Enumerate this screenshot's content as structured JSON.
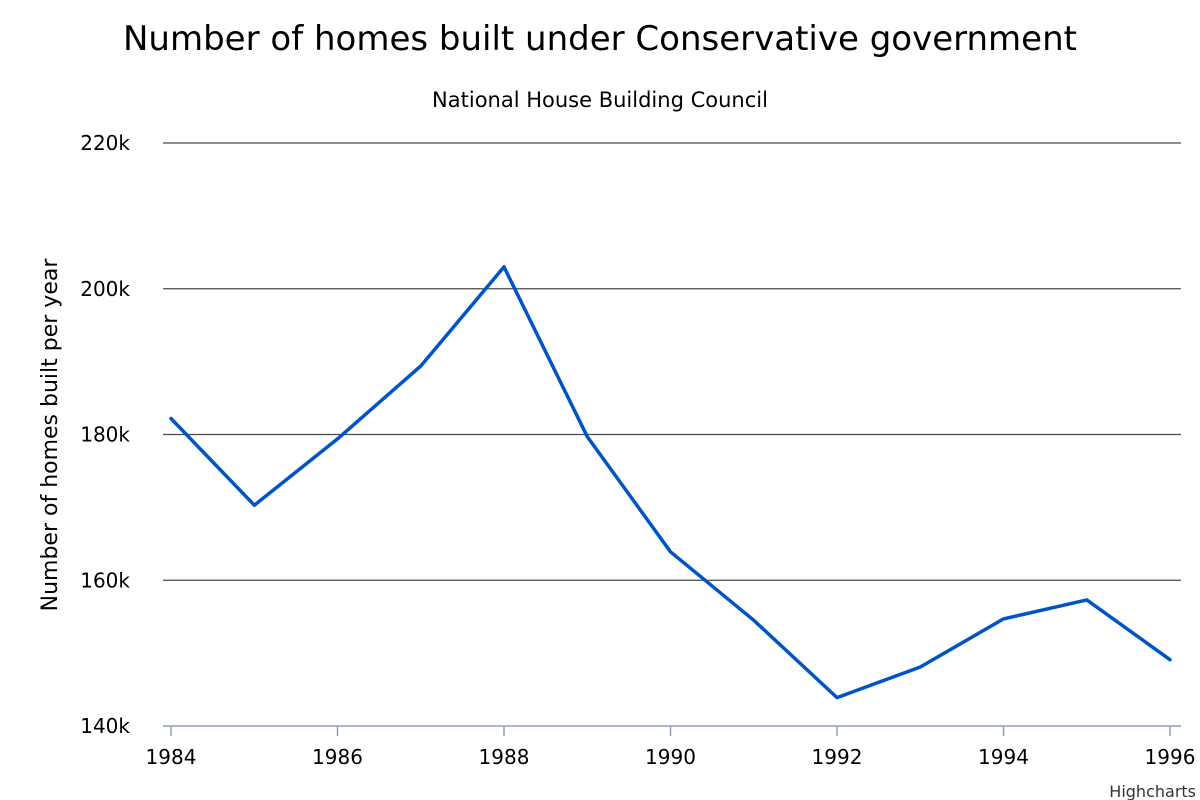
{
  "chart_data": {
    "type": "line",
    "title": "Number of homes built under Conservative government",
    "subtitle": "National House Building Council",
    "xlabel": "",
    "ylabel": "Number of homes built per year",
    "xlim": [
      1984,
      1996
    ],
    "ylim": [
      140000,
      220000
    ],
    "x_ticks": [
      1984,
      1986,
      1988,
      1990,
      1992,
      1994,
      1996
    ],
    "x_tick_labels": [
      "1984",
      "1986",
      "1988",
      "1990",
      "1992",
      "1994",
      "1996"
    ],
    "y_ticks": [
      140000,
      160000,
      180000,
      200000,
      220000
    ],
    "y_tick_labels": [
      "140k",
      "160k",
      "180k",
      "200k",
      "220k"
    ],
    "grid": true,
    "legend": "none",
    "series": [
      {
        "color": "#0054c6",
        "x": [
          1984,
          1985,
          1986,
          1987,
          1988,
          1989,
          1990,
          1991,
          1992,
          1993,
          1994,
          1995,
          1996
        ],
        "values": [
          182200,
          170300,
          179400,
          189400,
          203000,
          179700,
          163900,
          154500,
          143900,
          148100,
          154700,
          157300,
          149100
        ]
      }
    ],
    "credits": "Highcharts"
  }
}
